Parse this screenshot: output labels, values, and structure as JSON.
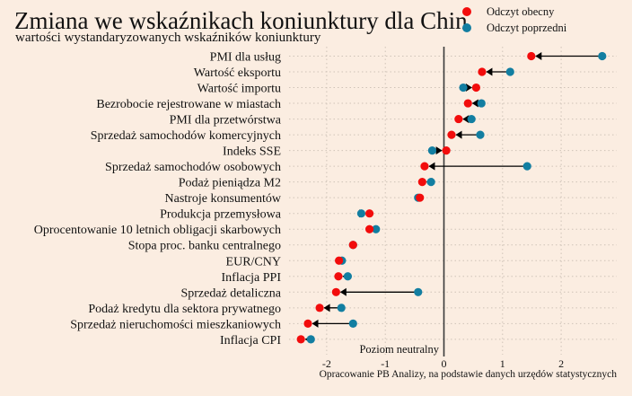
{
  "chart_data": {
    "type": "dumbbell",
    "title": "Zmiana we wskaźnikach koniunktury dla Chin",
    "subtitle": "wartości wystandaryzowanych wskaźników koniunktury",
    "source": "Opracowanie PB Analizy, na podstawie danych urzędów statystycznych",
    "neutral_label": "Poziom neutralny",
    "xlim": [
      -2.55,
      2.9
    ],
    "xticks": [
      -2,
      -1,
      0,
      1,
      2
    ],
    "xtick_labels": [
      "-2",
      "-1",
      "0",
      "1",
      "2"
    ],
    "grid": true,
    "legend": {
      "placement": "top-right",
      "items": [
        {
          "label": "Odczyt obecny",
          "color": "#f20c0c"
        },
        {
          "label": "Odczyt poprzedni",
          "color": "#127ea1"
        }
      ]
    },
    "categories": [
      "PMI dla usług",
      "Wartość eksportu",
      "Wartość importu",
      "Bezrobocie rejestrowane w miastach",
      "PMI dla przetwórstwa",
      "Sprzedaż samochodów komercyjnych",
      "Indeks SSE",
      "Sprzedaż samochodów osobowych",
      "Podaż pieniądza M2",
      "Nastroje konsumentów",
      "Produkcja przemysłowa",
      "Oprocentowanie 10 letnich obligacji skarbowych",
      "Stopa proc. banku centralnego",
      "EUR/CNY",
      "Inflacja PPI",
      "Sprzedaż detaliczna",
      "Podaż kredytu dla sektora prywatnego",
      "Sprzedaż nieruchomości mieszkaniowych",
      "Inflacja CPI"
    ],
    "series": [
      {
        "name": "Odczyt obecny",
        "values": [
          1.49,
          0.65,
          0.55,
          0.41,
          0.25,
          0.13,
          0.04,
          -0.33,
          -0.37,
          -0.41,
          -1.27,
          -1.27,
          -1.55,
          -1.79,
          -1.8,
          -1.84,
          -2.12,
          -2.32,
          -2.44
        ]
      },
      {
        "name": "Odczyt poprzedni",
        "values": [
          2.7,
          1.13,
          0.33,
          0.64,
          0.47,
          0.62,
          -0.2,
          1.42,
          -0.22,
          -0.44,
          -1.41,
          -1.16,
          -1.55,
          -1.74,
          -1.64,
          -0.44,
          -1.75,
          -1.55,
          -2.27
        ]
      }
    ]
  }
}
